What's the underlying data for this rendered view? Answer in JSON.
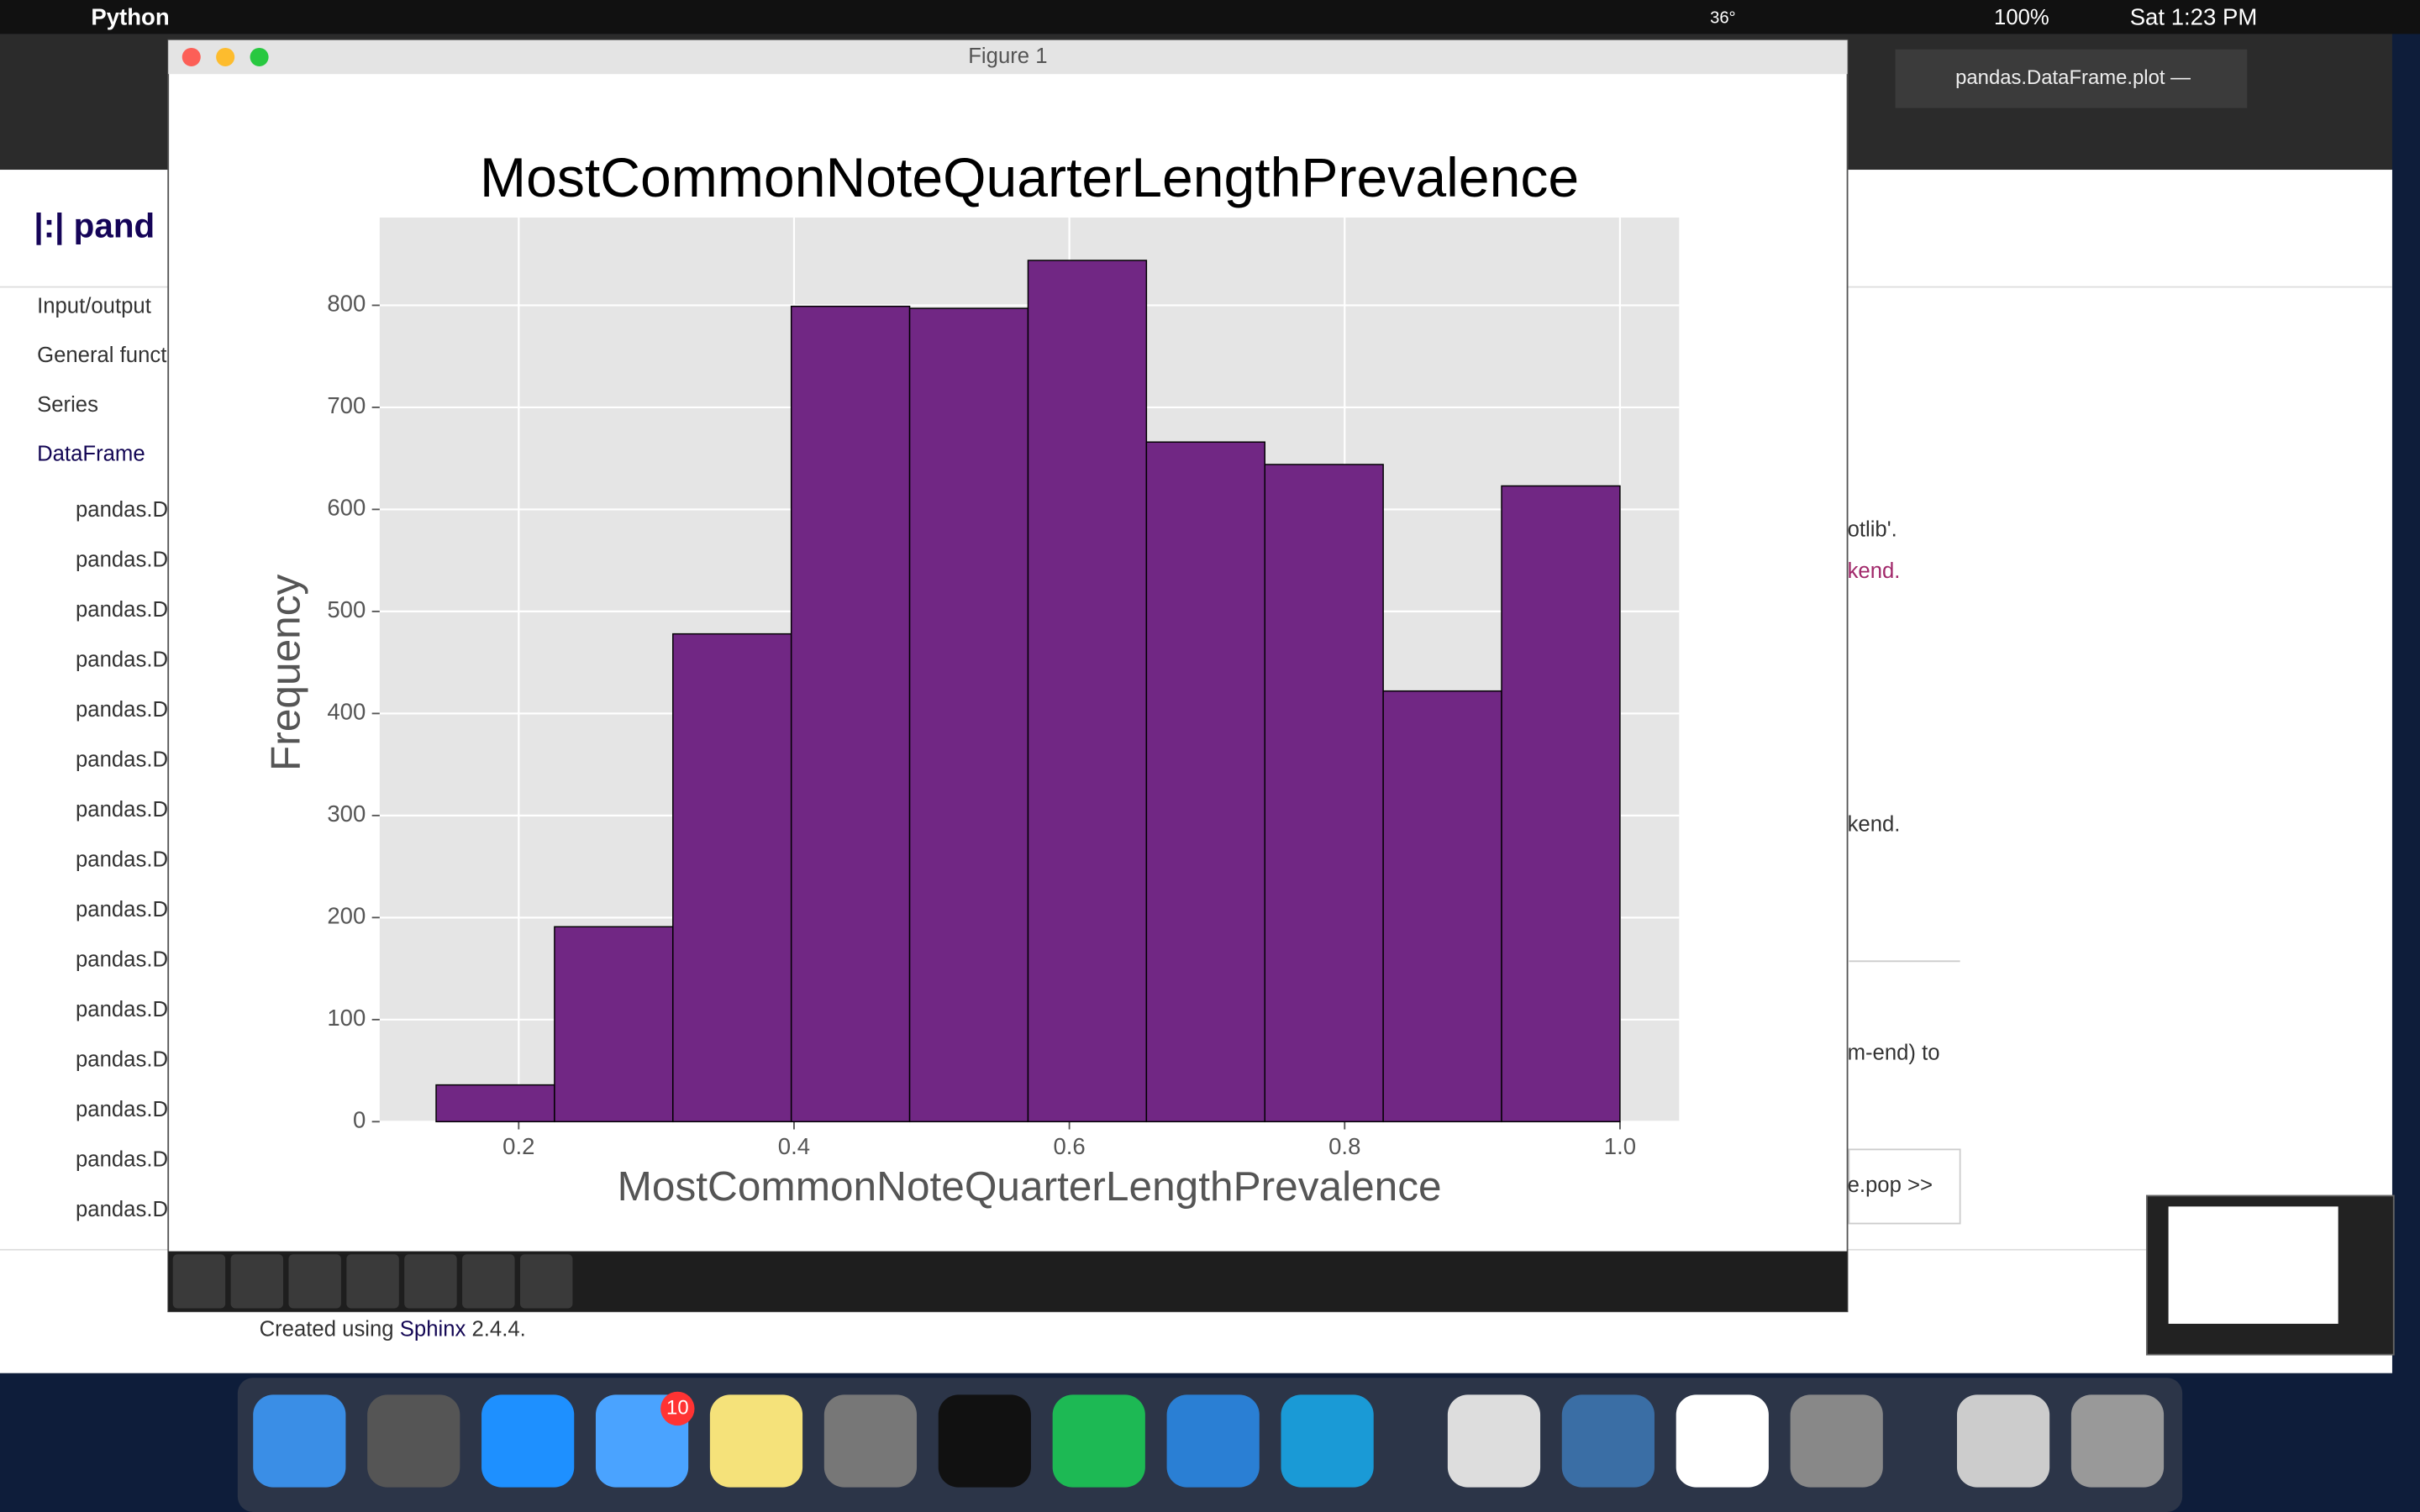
{
  "chart_data": {
    "type": "histogram",
    "title": "MostCommonNoteQuarterLengthPrevalence",
    "x_label": "MostCommonNoteQuarterLengthPrevalence",
    "y_label": "Frequency",
    "bins": [
      0.14,
      0.226,
      0.312,
      0.398,
      0.484,
      0.57,
      0.656,
      0.742,
      0.828,
      0.914,
      1.0
    ],
    "values": [
      36,
      191,
      478,
      799,
      797,
      844,
      666,
      644,
      422,
      623
    ],
    "color": "#712784",
    "xlim": [
      0.099,
      1.043
    ],
    "xticks": [
      0.2,
      0.4,
      0.6,
      0.8,
      {
        "value": 1.0,
        "label": "1.0"
      }
    ],
    "ylim": [
      0,
      886
    ],
    "yticks": [
      0,
      100,
      200,
      300,
      400,
      500,
      600,
      700,
      800
    ],
    "grid": true
  },
  "ui": {
    "app_name": "Python",
    "temperature": "36°",
    "battery": "100%",
    "clock": "Sat 1:23 PM",
    "window_title": "Figure 1",
    "tab_title": "pandas.DataFrame.plot —",
    "sidebar": [
      "Input/output",
      "General funct",
      "Series",
      "DataFrame"
    ],
    "sidebar_sub": [
      "pandas.D",
      "pandas.D",
      "pandas.D",
      "pandas.D",
      "pandas.D",
      "pandas.D",
      "pandas.D",
      "pandas.D",
      "pandas.D",
      "pandas.D",
      "pandas.D",
      "pandas.D",
      "pandas.D",
      "pandas.D",
      "pandas.D"
    ],
    "content": [
      "otlib'.",
      "kend.",
      "kend.",
      "m-end) to",
      "e.pop >>"
    ],
    "footer": [
      "Created using",
      "Sphinx",
      "2.4.4."
    ],
    "badge": "10"
  }
}
